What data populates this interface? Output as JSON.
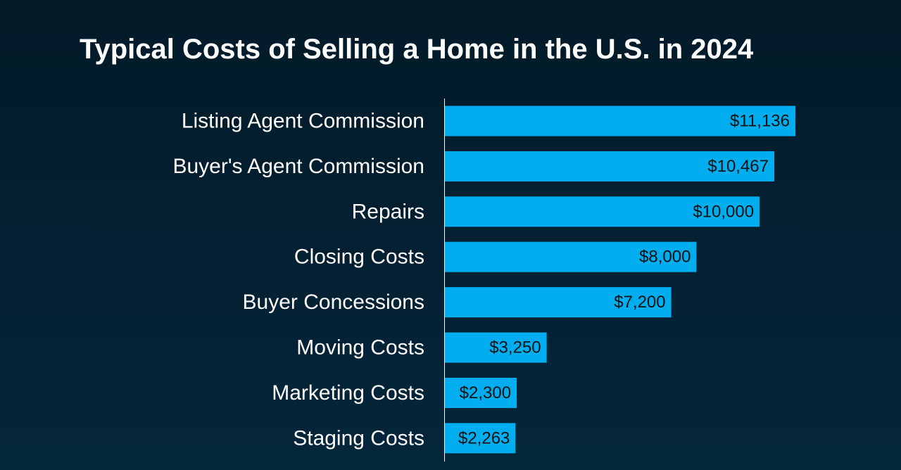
{
  "chart_data": {
    "type": "bar",
    "orientation": "horizontal",
    "title": "Typical Costs of Selling a Home in the U.S. in 2024",
    "categories": [
      "Listing Agent Commission",
      "Buyer's Agent Commission",
      "Repairs",
      "Closing Costs",
      "Buyer Concessions",
      "Moving Costs",
      "Marketing Costs",
      "Staging Costs"
    ],
    "values": [
      11136,
      10467,
      10000,
      8000,
      7200,
      3250,
      2300,
      2263
    ],
    "data_labels": [
      "$11,136",
      "$10,467",
      "$10,000",
      "$8,000",
      "$7,200",
      "$3,250",
      "$2,300",
      "$2,263"
    ],
    "xlim": [
      0,
      11136
    ],
    "grid": false,
    "legend": "none",
    "colors": {
      "bar": "#00aeef",
      "axis": "#ffffff",
      "label": "#ffffff",
      "value_label": "#111111",
      "background_top": "#031a28",
      "background_bottom": "#04263b"
    }
  }
}
